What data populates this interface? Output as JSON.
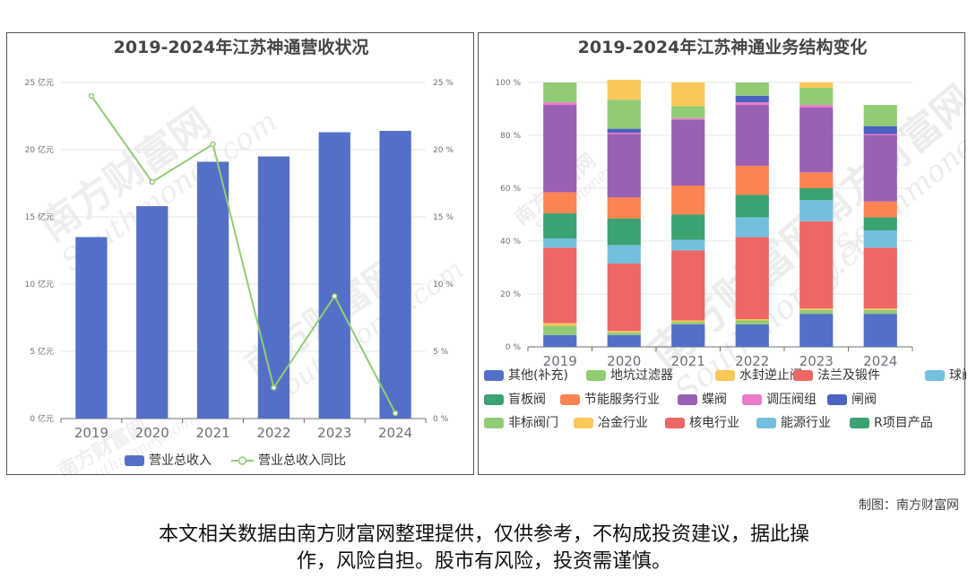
{
  "credit": "制图：南方财富网",
  "disclaimer": [
    "本文相关数据由南方财富网整理提供，仅供参考，不构成投资建议，据此操",
    "作，风险自担。股市有风险，投资需谨慎。"
  ],
  "watermark": {
    "brand": "南方财富网",
    "domain": "Southmoney.com"
  },
  "colors": {
    "bar": "#5470c6",
    "line": "#91cc75"
  },
  "chart_data": [
    {
      "type": "bar",
      "title": "2019-2024年江苏神通营收状况",
      "categories": [
        "2019",
        "2020",
        "2021",
        "2022",
        "2023",
        "2024"
      ],
      "series": [
        {
          "name": "营业总收入",
          "type": "bar",
          "axis": "left",
          "values": [
            13.5,
            15.8,
            19.1,
            19.5,
            21.3,
            21.4
          ]
        },
        {
          "name": "营业总收入同比",
          "type": "line",
          "axis": "right",
          "values": [
            24.0,
            17.6,
            20.4,
            2.3,
            9.1,
            0.4
          ]
        }
      ],
      "y_left": {
        "ticks": [
          "0 亿元",
          "5 亿元",
          "10 亿元",
          "15 亿元",
          "20 亿元",
          "25 亿元"
        ],
        "range": [
          0,
          25
        ]
      },
      "y_right": {
        "ticks": [
          "0 %",
          "5 %",
          "10 %",
          "15 %",
          "20 %",
          "25 %"
        ],
        "range": [
          0,
          25
        ]
      },
      "legend_position": "bottom",
      "grid": true
    },
    {
      "type": "bar",
      "stacked": true,
      "title": "2019-2024年江苏神通业务结构变化",
      "categories": [
        "2019",
        "2020",
        "2021",
        "2022",
        "2023",
        "2024"
      ],
      "y_ticks": [
        "0 %",
        "20 %",
        "40 %",
        "60 %",
        "80 %",
        "100 %"
      ],
      "y_range": [
        0,
        100
      ],
      "legend_position": "bottom",
      "series": [
        {
          "name": "其他(补充)",
          "color": "#5470c6",
          "values": [
            4.5,
            4.5,
            8.5,
            8.5,
            12.5,
            12.5
          ]
        },
        {
          "name": "地坑过滤器",
          "color": "#91cc75",
          "values": [
            3.5,
            1.0,
            1.0,
            1.5,
            1.5,
            1.5
          ]
        },
        {
          "name": "水封逆止阀",
          "color": "#fac858",
          "values": [
            1.0,
            0.5,
            0.5,
            0.5,
            0.5,
            0.5
          ]
        },
        {
          "name": "法兰及锻件",
          "color": "#ee6666",
          "values": [
            28.5,
            25.5,
            26.5,
            31.0,
            33.0,
            23.0
          ]
        },
        {
          "name": "球阀",
          "color": "#73c0de",
          "values": [
            3.5,
            7.0,
            4.0,
            7.5,
            8.0,
            6.5
          ]
        },
        {
          "name": "盲板阀",
          "color": "#3ba272",
          "values": [
            9.5,
            10.0,
            9.5,
            8.5,
            4.5,
            5.0
          ]
        },
        {
          "name": "节能服务行业",
          "color": "#fc8452",
          "values": [
            8.0,
            8.0,
            11.0,
            11.0,
            6.0,
            6.0
          ]
        },
        {
          "name": "蝶阀",
          "color": "#9a60b4",
          "values": [
            33.0,
            24.0,
            25.0,
            23.0,
            24.5,
            25.0
          ]
        },
        {
          "name": "调压阀组",
          "color": "#ea7ccc",
          "values": [
            1.0,
            0.5,
            0.5,
            1.0,
            1.0,
            0.5
          ]
        },
        {
          "name": "闸阀",
          "color": "#4a62c2",
          "values": [
            0.0,
            1.5,
            0.0,
            2.5,
            0.0,
            3.0
          ]
        },
        {
          "name": "非标阀门",
          "color": "#91cc75",
          "values": [
            7.5,
            11.0,
            4.5,
            5.0,
            6.5,
            8.0
          ]
        },
        {
          "name": "冶金行业",
          "color": "#fac858",
          "values": [
            0.0,
            7.5,
            9.0,
            0.0,
            2.0,
            0.0
          ]
        },
        {
          "name": "核电行业",
          "color": "#ee6666",
          "values": [
            0,
            0,
            0,
            0,
            0,
            0
          ]
        },
        {
          "name": "能源行业",
          "color": "#73c0de",
          "values": [
            0,
            0,
            0,
            0,
            0,
            0
          ]
        },
        {
          "name": "R项目产品",
          "color": "#3ba272",
          "values": [
            0,
            0,
            0,
            0,
            0,
            0
          ]
        }
      ]
    }
  ]
}
